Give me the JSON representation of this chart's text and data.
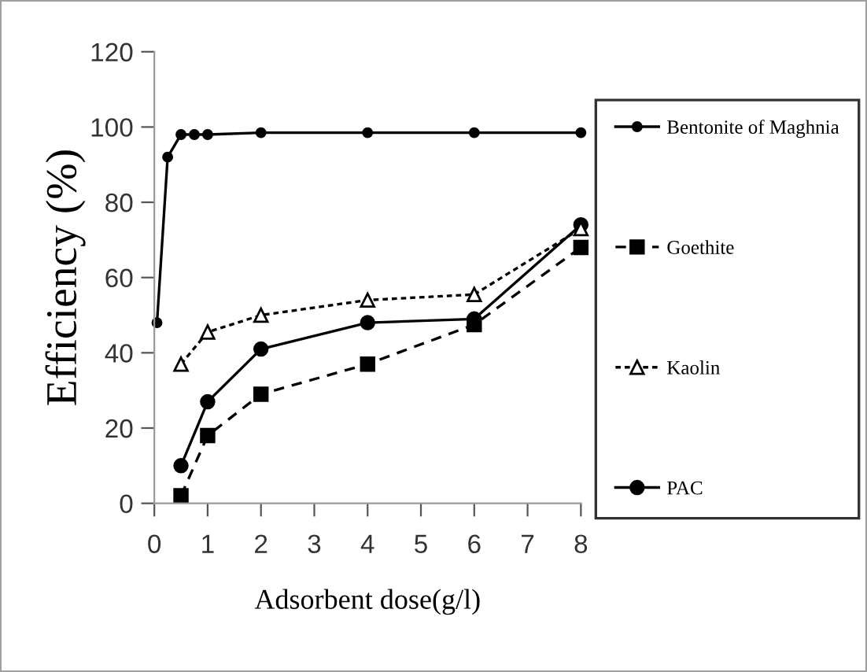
{
  "chart_data": {
    "type": "line",
    "xlabel": "Adsorbent dose(g/l)",
    "ylabel": "Efficiency (%)",
    "xlim": [
      0,
      8
    ],
    "xticks": [
      0,
      1,
      2,
      3,
      4,
      5,
      6,
      7,
      8
    ],
    "ylim": [
      0,
      120
    ],
    "yticks": [
      0,
      20,
      40,
      60,
      80,
      100,
      120
    ],
    "grid": false,
    "legend": "right",
    "series": [
      {
        "name": "Bentonite of Maghnia",
        "color": "#000000",
        "marker": "circle",
        "line_style": "solid",
        "x": [
          0.05,
          0.25,
          0.5,
          0.75,
          1,
          2,
          4,
          6,
          8
        ],
        "values": [
          48,
          92,
          98,
          98,
          98,
          98.5,
          98.5,
          98.5,
          98.5
        ]
      },
      {
        "name": "Goethite",
        "color": "#000000",
        "marker": "square",
        "line_style": "dashed",
        "x": [
          0.5,
          1,
          2,
          4,
          6,
          8
        ],
        "values": [
          2,
          18,
          29,
          37,
          47.5,
          68
        ]
      },
      {
        "name": "Kaolin",
        "color": "#000000",
        "marker": "triangle",
        "line_style": "dotted",
        "x": [
          0.5,
          1,
          2,
          4,
          6,
          8
        ],
        "values": [
          37,
          45.5,
          50,
          54,
          55.5,
          73
        ]
      },
      {
        "name": "PAC",
        "color": "#000000",
        "marker": "circle",
        "line_style": "solid",
        "x": [
          0.5,
          1,
          2,
          4,
          6,
          8
        ],
        "values": [
          10,
          27,
          41,
          48,
          49,
          74
        ]
      }
    ]
  }
}
